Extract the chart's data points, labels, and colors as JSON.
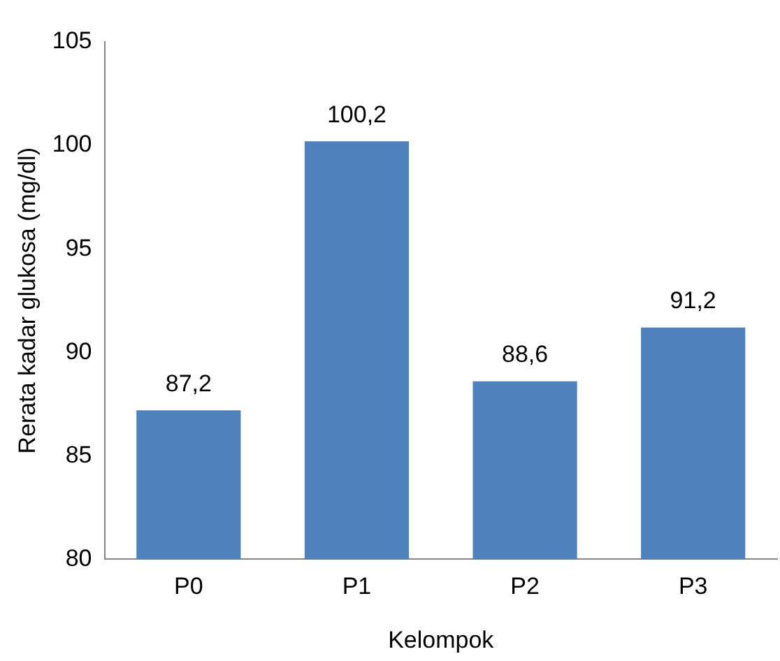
{
  "chart_data": {
    "type": "bar",
    "xlabel": "Kelompok",
    "ylabel": "Rerata kadar glukosa (mg/dl)",
    "categories": [
      "P0",
      "P1",
      "P2",
      "P3"
    ],
    "values": [
      87.2,
      100.2,
      88.6,
      91.2
    ],
    "value_labels": [
      "87,2",
      "100,2",
      "88,6",
      "91,2"
    ],
    "color": "#4f81bd",
    "ylim": [
      80,
      105
    ],
    "yticks": [
      80,
      85,
      90,
      95,
      100,
      105
    ],
    "grid": false,
    "legend": false
  }
}
